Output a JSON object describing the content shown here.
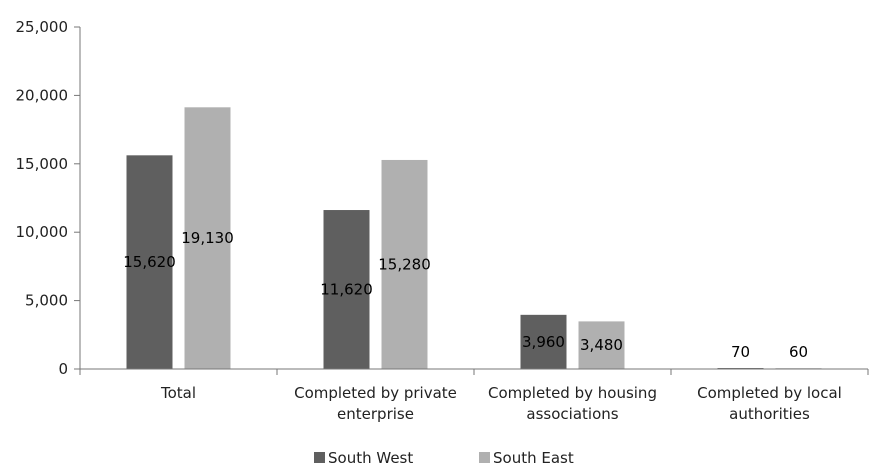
{
  "chart_data": {
    "type": "bar",
    "categories": [
      [
        "Total"
      ],
      [
        "Completed by private",
        "enterprise"
      ],
      [
        "Completed by housing",
        "associations"
      ],
      [
        "Completed by local",
        "authorities"
      ]
    ],
    "series": [
      {
        "name": "South West",
        "color": "#5f5f5f",
        "values": [
          15620,
          11620,
          3960,
          70
        ],
        "labels": [
          "15,620",
          "11,620",
          "3,960",
          "70"
        ]
      },
      {
        "name": "South East",
        "color": "#b0b0b0",
        "values": [
          19130,
          15280,
          3480,
          60
        ],
        "labels": [
          "19,130",
          "15,280",
          "3,480",
          "60"
        ]
      }
    ],
    "ylim": [
      0,
      25000
    ],
    "yticks": [
      0,
      5000,
      10000,
      15000,
      20000,
      25000
    ],
    "ytick_labels": [
      "0",
      "5,000",
      "10,000",
      "15,000",
      "20,000",
      "25,000"
    ],
    "grid": false,
    "legend_position": "bottom",
    "title": "",
    "xlabel": "",
    "ylabel": ""
  }
}
